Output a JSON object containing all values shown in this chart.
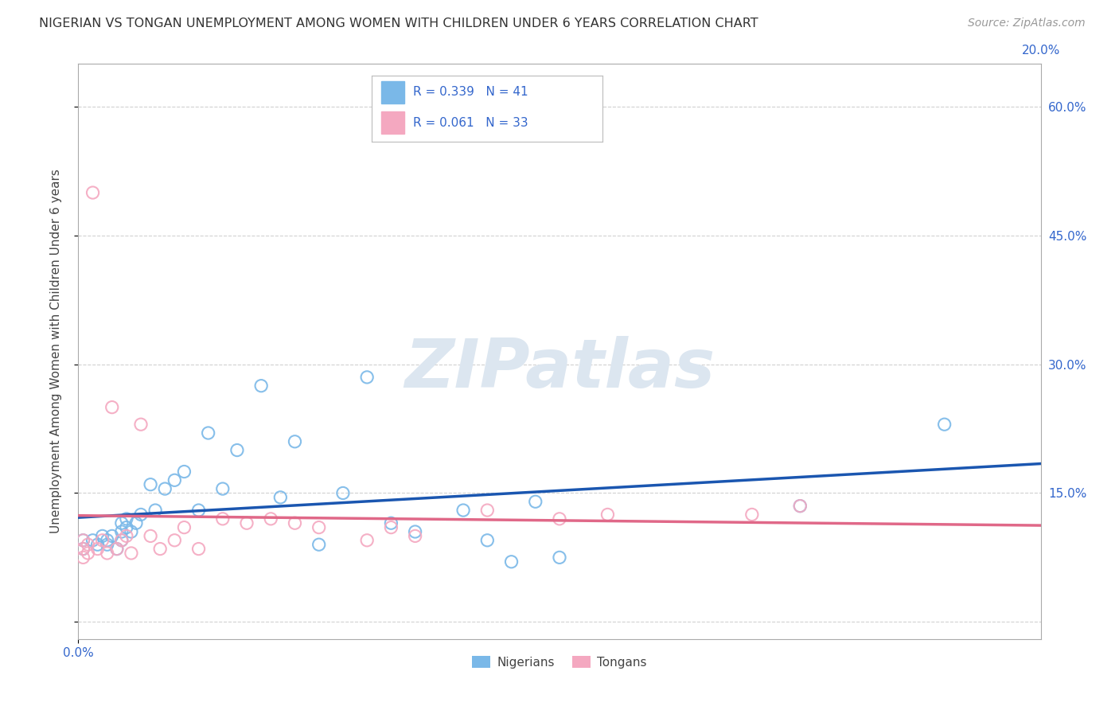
{
  "title": "NIGERIAN VS TONGAN UNEMPLOYMENT AMONG WOMEN WITH CHILDREN UNDER 6 YEARS CORRELATION CHART",
  "source": "Source: ZipAtlas.com",
  "ylabel": "Unemployment Among Women with Children Under 6 years",
  "xlim": [
    0.0,
    0.2
  ],
  "ylim": [
    -0.02,
    0.65
  ],
  "yticks": [
    0.0,
    0.15,
    0.3,
    0.45,
    0.6
  ],
  "ytick_labels": [
    "",
    "15.0%",
    "30.0%",
    "45.0%",
    "60.0%"
  ],
  "background_color": "#ffffff",
  "grid_color": "#cccccc",
  "blue_color": "#7ab8e8",
  "pink_color": "#f4a8c0",
  "blue_line_color": "#1a56b0",
  "pink_line_color": "#e06888",
  "tick_label_color": "#3366cc",
  "watermark_color": "#dce6f0",
  "r1": 0.339,
  "n1": 41,
  "r2": 0.061,
  "n2": 33,
  "blue_x": [
    0.001,
    0.001,
    0.003,
    0.004,
    0.005,
    0.006,
    0.006,
    0.007,
    0.008,
    0.009,
    0.009,
    0.009,
    0.01,
    0.01,
    0.011,
    0.012,
    0.013,
    0.015,
    0.016,
    0.018,
    0.02,
    0.022,
    0.025,
    0.027,
    0.03,
    0.033,
    0.038,
    0.042,
    0.045,
    0.05,
    0.055,
    0.06,
    0.065,
    0.07,
    0.08,
    0.085,
    0.09,
    0.095,
    0.1,
    0.15,
    0.18
  ],
  "blue_y": [
    0.095,
    0.085,
    0.095,
    0.09,
    0.1,
    0.09,
    0.095,
    0.1,
    0.085,
    0.095,
    0.105,
    0.115,
    0.11,
    0.12,
    0.105,
    0.115,
    0.125,
    0.16,
    0.13,
    0.155,
    0.165,
    0.175,
    0.13,
    0.22,
    0.155,
    0.2,
    0.275,
    0.145,
    0.21,
    0.09,
    0.15,
    0.285,
    0.115,
    0.105,
    0.13,
    0.095,
    0.07,
    0.14,
    0.075,
    0.135,
    0.23
  ],
  "pink_x": [
    0.001,
    0.001,
    0.001,
    0.002,
    0.002,
    0.003,
    0.004,
    0.005,
    0.006,
    0.007,
    0.008,
    0.009,
    0.01,
    0.011,
    0.013,
    0.015,
    0.017,
    0.02,
    0.022,
    0.025,
    0.03,
    0.035,
    0.04,
    0.045,
    0.05,
    0.06,
    0.065,
    0.07,
    0.085,
    0.1,
    0.11,
    0.14,
    0.15
  ],
  "pink_y": [
    0.075,
    0.085,
    0.095,
    0.08,
    0.09,
    0.5,
    0.085,
    0.095,
    0.08,
    0.25,
    0.085,
    0.095,
    0.1,
    0.08,
    0.23,
    0.1,
    0.085,
    0.095,
    0.11,
    0.085,
    0.12,
    0.115,
    0.12,
    0.115,
    0.11,
    0.095,
    0.11,
    0.1,
    0.13,
    0.12,
    0.125,
    0.125,
    0.135
  ]
}
